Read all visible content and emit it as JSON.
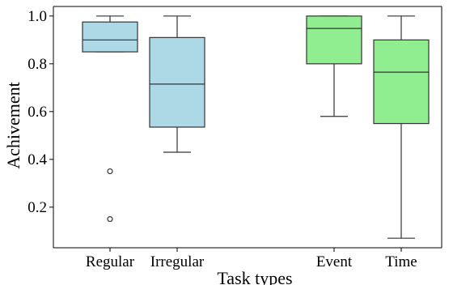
{
  "chart_data": {
    "type": "box",
    "xlabel": "Task types",
    "ylabel": "Achivement",
    "ylim": [
      0.03,
      1.04
    ],
    "yticks": [
      0.2,
      0.4,
      0.6,
      0.8,
      1.0
    ],
    "ytick_labels": [
      "0.2",
      "0.4",
      "0.6",
      "0.8",
      "1.0"
    ],
    "grid": false,
    "groups": [
      {
        "category": "Regular",
        "color": "#add8e6",
        "whisker_low": 0.85,
        "q1": 0.85,
        "median": 0.9,
        "q3": 0.975,
        "whisker_high": 1.0,
        "outliers": [
          0.35,
          0.15
        ]
      },
      {
        "category": "Irregular",
        "color": "#add8e6",
        "whisker_low": 0.43,
        "q1": 0.535,
        "median": 0.715,
        "q3": 0.91,
        "whisker_high": 1.0,
        "outliers": []
      },
      {
        "category": "Event",
        "color": "#90ee90",
        "whisker_low": 0.58,
        "q1": 0.8,
        "median": 0.948,
        "q3": 1.0,
        "whisker_high": 1.0,
        "outliers": []
      },
      {
        "category": "Time",
        "color": "#90ee90",
        "whisker_low": 0.07,
        "q1": 0.55,
        "median": 0.765,
        "q3": 0.9,
        "whisker_high": 1.0,
        "outliers": []
      }
    ]
  }
}
